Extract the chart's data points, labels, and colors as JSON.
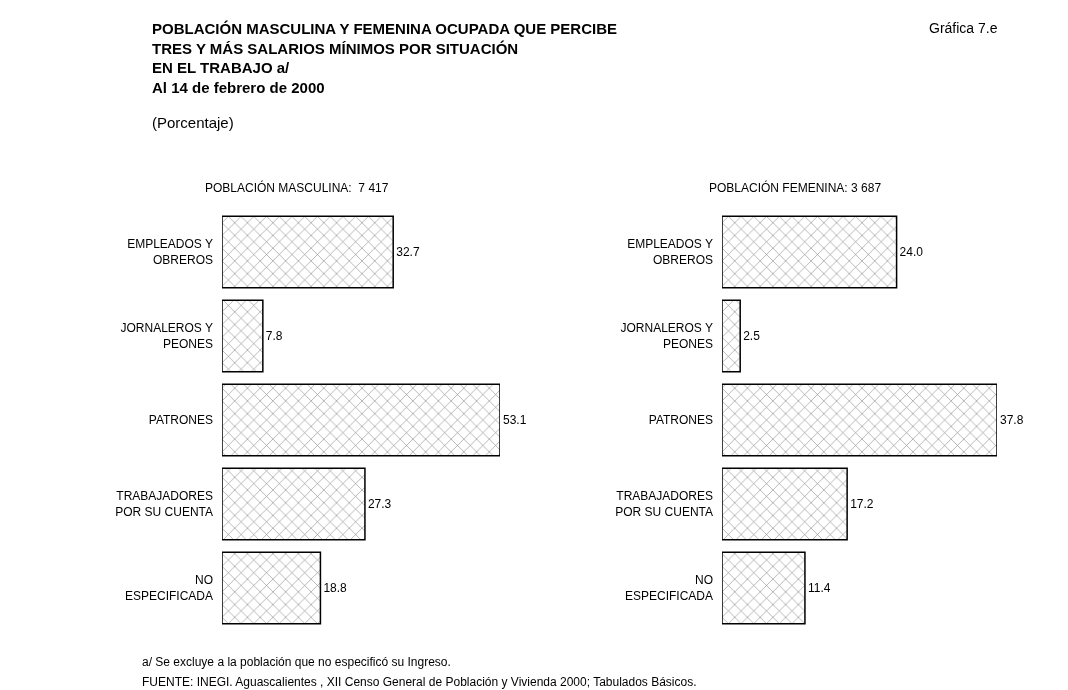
{
  "chart_data": [
    {
      "type": "bar",
      "orientation": "horizontal",
      "title": "POBLACIÓN MASCULINA:  7 417",
      "categories": [
        "EMPLEADOS Y\nOBREROS",
        "JORNALEROS Y\nPEONES",
        "PATRONES",
        "TRABAJADORES\nPOR SU CUENTA",
        "NO\nESPECIFICADA"
      ],
      "values": [
        32.7,
        7.8,
        53.1,
        27.3,
        18.8
      ],
      "value_labels": [
        "32.7",
        "7.8",
        "53.1",
        "27.3",
        "18.8"
      ],
      "color": "#000000",
      "xlim": [
        0,
        53.1
      ],
      "tick_labels": "y",
      "annotations": [
        "POBLACIÓN MASCULINA Y FEMENINA OCUPADA QUE PERCIBE\nTRES Y MÁS SALARIOS MÍNIMOS POR SITUACIÓN\nEN EL TRABAJO a/\nAl 14 de febrero de 2000",
        "(Porcentaje)",
        "Gráfica 7.e",
        "a/ Se excluye a la población que no especificó su Ingreso.",
        "FUENTE: INEGI. Aguascalientes , XII Censo General de Población y Vivienda 2000; Tabulados Básicos."
      ]
    },
    {
      "type": "bar",
      "orientation": "horizontal",
      "title": "POBLACIÓN FEMENINA: 3 687",
      "categories": [
        "EMPLEADOS Y\nOBREROS",
        "JORNALEROS Y\nPEONES",
        "PATRONES",
        "TRABAJADORES\nPOR SU CUENTA",
        "NO\nESPECIFICADA"
      ],
      "values": [
        24.0,
        2.5,
        37.8,
        17.2,
        11.4
      ],
      "value_labels": [
        "24.0",
        "2.5",
        "37.8",
        "17.2",
        "11.4"
      ],
      "color": "#000000",
      "xlim": [
        0,
        37.8
      ],
      "tick_labels": "y"
    }
  ]
}
